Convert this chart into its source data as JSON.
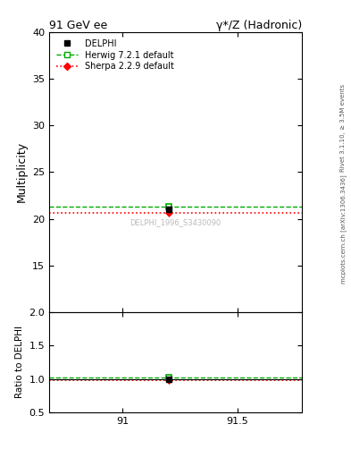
{
  "title_left": "91 GeV ee",
  "title_right": "γ*/Z (Hadronic)",
  "ylabel_main": "Multiplicity",
  "ylabel_ratio": "Ratio to DELPHI",
  "right_label_top": "Rivet 3.1.10, ≥ 3.5M events",
  "right_label_bottom": "mcplots.cern.ch [arXiv:1306.3436]",
  "watermark": "DELPHI_1996_S3430090",
  "xlim": [
    90.68,
    91.78
  ],
  "xticks": [
    91.0,
    91.5
  ],
  "ylim_main": [
    10,
    40
  ],
  "yticks_main": [
    15,
    20,
    25,
    30,
    35,
    40
  ],
  "ylim_ratio": [
    0.5,
    2.0
  ],
  "yticks_ratio": [
    0.5,
    1.0,
    1.5,
    2.0
  ],
  "data_x": 91.2,
  "data_y": 21.05,
  "data_yerr": 0.25,
  "herwig_x": 91.2,
  "herwig_y": 21.35,
  "herwig_line_y": 21.35,
  "sherpa_x": 91.2,
  "sherpa_y": 20.6,
  "sherpa_line_y": 20.6,
  "herwig_ratio": 1.014,
  "sherpa_ratio": 0.979,
  "data_color": "#000000",
  "herwig_color": "#00aa00",
  "sherpa_color": "#ff0000",
  "bg_color": "#ffffff"
}
